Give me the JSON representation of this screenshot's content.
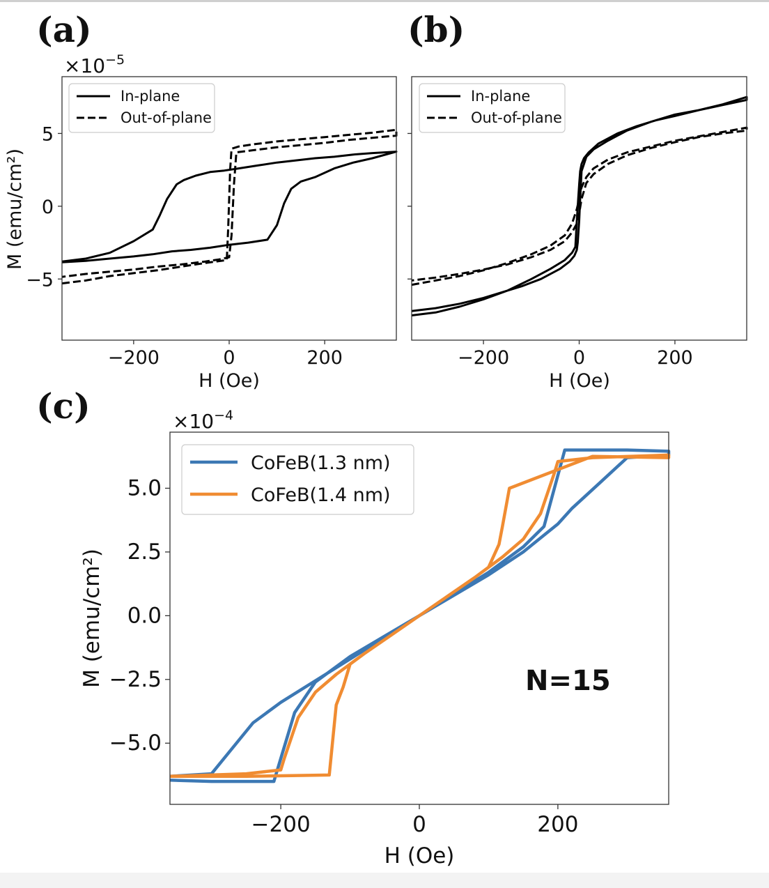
{
  "chart_data": [
    {
      "panel_label": "(a)",
      "type": "line",
      "xlabel": "H (Oe)",
      "ylabel": "M (emu/cm²)",
      "offset_text": "×10",
      "offset_exp": "−5",
      "xlim": [
        -350,
        350
      ],
      "ylim": [
        -9.2,
        8.9
      ],
      "xticks": [
        -200,
        0,
        200
      ],
      "xtick_labels": [
        "−200",
        "0",
        "200"
      ],
      "yticks": [
        -5,
        0,
        5
      ],
      "ytick_labels": [
        "−5",
        "0",
        "5"
      ],
      "grid": false,
      "legend_placement": "upper-left",
      "series": [
        {
          "name": "In-plane",
          "style": "solid",
          "color": "#000000",
          "x": [
            -350,
            -300,
            -250,
            -200,
            -160,
            -145,
            -130,
            -110,
            -95,
            -70,
            -40,
            -10,
            20,
            60,
            100,
            140,
            180,
            220,
            260,
            300,
            350,
            350,
            300,
            260,
            220,
            180,
            150,
            130,
            115,
            100,
            80,
            40,
            0,
            -40,
            -80,
            -120,
            -160,
            -200,
            -250,
            -300,
            -350
          ],
          "y": [
            -3.8,
            -3.6,
            -3.2,
            -2.4,
            -1.6,
            -0.6,
            0.5,
            1.5,
            1.8,
            2.1,
            2.35,
            2.45,
            2.6,
            2.8,
            3.0,
            3.15,
            3.3,
            3.4,
            3.55,
            3.65,
            3.75,
            3.75,
            3.3,
            3.0,
            2.6,
            2.0,
            1.7,
            1.2,
            0.2,
            -1.3,
            -2.3,
            -2.5,
            -2.65,
            -2.85,
            -3.0,
            -3.1,
            -3.3,
            -3.45,
            -3.6,
            -3.75,
            -3.85
          ]
        },
        {
          "name": "Out-of-plane",
          "style": "dashed",
          "color": "#000000",
          "x": [
            -350,
            -300,
            -250,
            -200,
            -150,
            -100,
            -50,
            -5,
            -2,
            2,
            5,
            20,
            50,
            100,
            150,
            200,
            250,
            300,
            350,
            350,
            300,
            250,
            200,
            150,
            100,
            50,
            15,
            10,
            5,
            0,
            -20,
            -50,
            -100,
            -150,
            -200,
            -250,
            -300,
            -350
          ],
          "y": [
            -5.3,
            -5.1,
            -4.8,
            -4.6,
            -4.4,
            -4.15,
            -3.9,
            -3.7,
            -1.5,
            2.5,
            3.95,
            4.1,
            4.25,
            4.45,
            4.6,
            4.75,
            4.9,
            5.05,
            5.25,
            4.85,
            4.7,
            4.55,
            4.35,
            4.2,
            4.05,
            3.85,
            3.7,
            1.5,
            -2.0,
            -3.5,
            -3.65,
            -3.8,
            -4.0,
            -4.15,
            -4.35,
            -4.5,
            -4.65,
            -4.85
          ]
        }
      ]
    },
    {
      "panel_label": "(b)",
      "type": "line",
      "xlabel": "H (Oe)",
      "ylabel": "",
      "xlim": [
        -350,
        350
      ],
      "ylim": [
        -9.2,
        8.9
      ],
      "xticks": [
        -200,
        0,
        200
      ],
      "xtick_labels": [
        "−200",
        "0",
        "200"
      ],
      "grid": false,
      "legend_placement": "upper-left",
      "series": [
        {
          "name": "In-plane",
          "style": "solid",
          "color": "#000000",
          "x": [
            -350,
            -300,
            -250,
            -200,
            -150,
            -100,
            -60,
            -30,
            -15,
            -8,
            -5,
            -2,
            0,
            2,
            5,
            10,
            20,
            40,
            80,
            120,
            160,
            200,
            250,
            300,
            350,
            350,
            300,
            250,
            200,
            150,
            100,
            60,
            30,
            15,
            10,
            5,
            2,
            0,
            -3,
            -5,
            -10,
            -20,
            -40,
            -80,
            -120,
            -160,
            -200,
            -250,
            -300,
            -350
          ],
          "y": [
            -7.5,
            -7.3,
            -6.9,
            -6.4,
            -5.8,
            -5.0,
            -4.3,
            -3.7,
            -3.2,
            -2.8,
            -1.0,
            0.5,
            1.5,
            2.4,
            2.9,
            3.3,
            3.7,
            4.3,
            5.0,
            5.5,
            5.9,
            6.2,
            6.6,
            6.95,
            7.3,
            7.5,
            7.0,
            6.6,
            6.3,
            5.8,
            5.2,
            4.5,
            3.9,
            3.4,
            2.9,
            2.4,
            0.5,
            -1.0,
            -2.5,
            -3.0,
            -3.4,
            -3.8,
            -4.3,
            -5.0,
            -5.5,
            -5.9,
            -6.3,
            -6.7,
            -7.0,
            -7.2
          ]
        },
        {
          "name": "Out-of-plane",
          "style": "dashed",
          "color": "#000000",
          "x": [
            -350,
            -300,
            -250,
            -200,
            -150,
            -100,
            -60,
            -30,
            -15,
            -5,
            0,
            5,
            15,
            30,
            60,
            100,
            150,
            200,
            250,
            300,
            350,
            350,
            300,
            250,
            200,
            150,
            100,
            60,
            30,
            15,
            5,
            0,
            -5,
            -15,
            -30,
            -60,
            -100,
            -150,
            -200,
            -250,
            -300,
            -350
          ],
          "y": [
            -5.4,
            -5.1,
            -4.8,
            -4.4,
            -3.9,
            -3.3,
            -2.7,
            -2.0,
            -1.2,
            -0.2,
            0.5,
            1.3,
            2.0,
            2.6,
            3.2,
            3.7,
            4.1,
            4.5,
            4.8,
            5.1,
            5.4,
            5.2,
            5.0,
            4.75,
            4.4,
            4.0,
            3.5,
            2.9,
            2.2,
            1.6,
            0.5,
            -0.5,
            -1.2,
            -1.8,
            -2.4,
            -3.0,
            -3.5,
            -4.0,
            -4.35,
            -4.65,
            -4.9,
            -5.1
          ]
        }
      ]
    },
    {
      "panel_label": "(c)",
      "type": "line",
      "xlabel": "H (Oe)",
      "ylabel": "M (emu/cm²)",
      "offset_text": "×10",
      "offset_exp": "−4",
      "xlim": [
        -360,
        360
      ],
      "ylim": [
        -7.4,
        7.2
      ],
      "xticks": [
        -200,
        0,
        200
      ],
      "xtick_labels": [
        "−200",
        "0",
        "200"
      ],
      "yticks": [
        5.0,
        2.5,
        0.0,
        -2.5,
        -5.0
      ],
      "ytick_labels": [
        "5.0",
        "2.5",
        "0.0",
        "−2.5",
        "−5.0"
      ],
      "grid": false,
      "legend_placement": "upper-left",
      "annotation": "N=15",
      "series": [
        {
          "name": "CoFeB(1.3 nm)",
          "style": "solid",
          "color": "#3c78b4",
          "x": [
            -360,
            -300,
            -270,
            -240,
            -200,
            -150,
            -100,
            -50,
            0,
            50,
            100,
            150,
            180,
            210,
            300,
            360,
            360,
            300,
            260,
            220,
            200,
            150,
            100,
            50,
            0,
            -50,
            -100,
            -150,
            -180,
            -200,
            -210,
            -300,
            -360
          ],
          "y": [
            -6.3,
            -6.2,
            -5.2,
            -4.2,
            -3.4,
            -2.55,
            -1.7,
            -0.85,
            0.0,
            0.85,
            1.7,
            2.7,
            3.5,
            6.5,
            6.5,
            6.45,
            6.3,
            6.2,
            5.2,
            4.2,
            3.6,
            2.5,
            1.6,
            0.8,
            0.0,
            -0.8,
            -1.6,
            -2.6,
            -3.8,
            -5.6,
            -6.5,
            -6.5,
            -6.45
          ]
        },
        {
          "name": "CoFeB(1.4 nm)",
          "style": "solid",
          "color": "#f08c32",
          "x": [
            -360,
            -250,
            -200,
            -195,
            -190,
            -175,
            -150,
            -120,
            -80,
            -40,
            0,
            40,
            80,
            100,
            115,
            120,
            130,
            250,
            360,
            360,
            250,
            200,
            195,
            190,
            175,
            150,
            120,
            80,
            40,
            0,
            -40,
            -80,
            -100,
            -110,
            -120,
            -130,
            -250,
            -360
          ],
          "y": [
            -6.3,
            -6.2,
            -6.05,
            -5.6,
            -5.2,
            -4.0,
            -3.0,
            -2.3,
            -1.5,
            -0.75,
            0.0,
            0.75,
            1.5,
            1.9,
            2.8,
            3.5,
            5.0,
            6.25,
            6.2,
            6.3,
            6.2,
            6.05,
            5.6,
            5.2,
            4.0,
            3.0,
            2.3,
            1.5,
            0.75,
            0.0,
            -0.75,
            -1.5,
            -1.9,
            -2.8,
            -3.5,
            -6.25,
            -6.3,
            -6.3
          ]
        }
      ]
    }
  ]
}
